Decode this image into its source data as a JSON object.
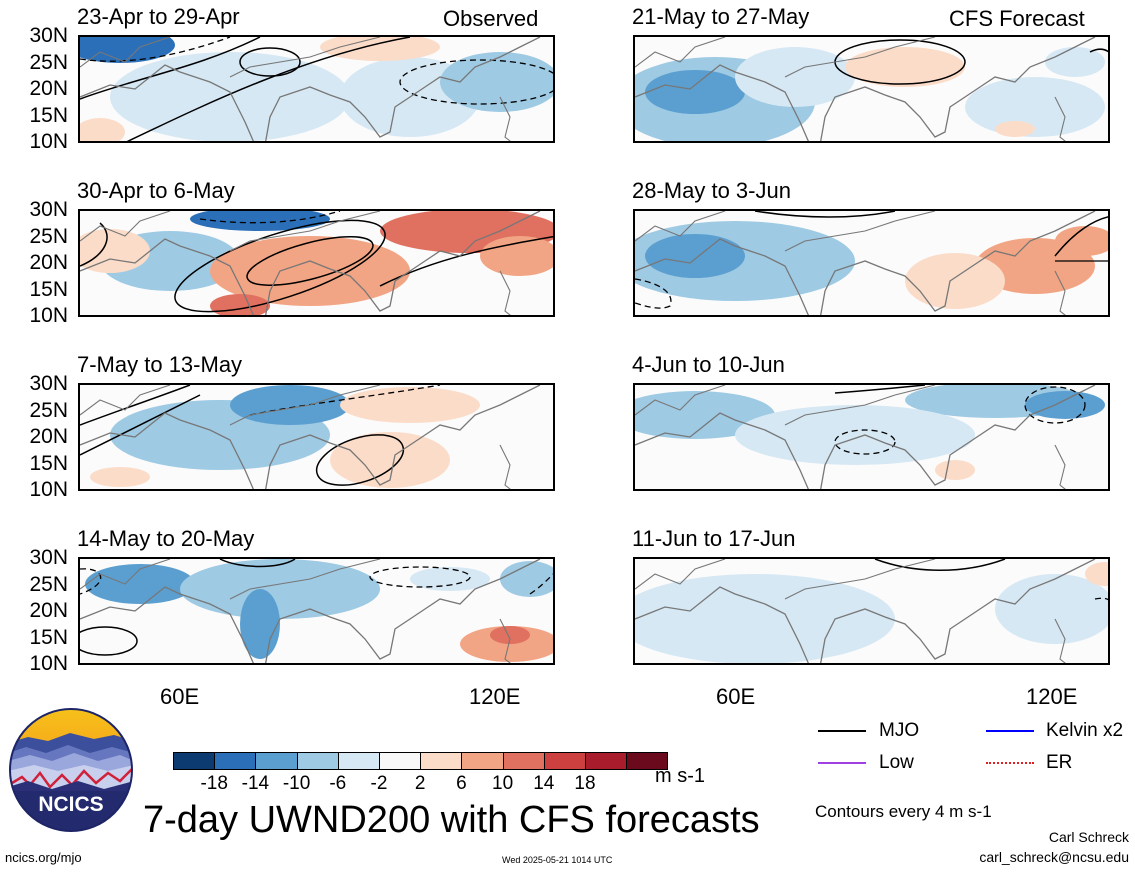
{
  "panels": [
    {
      "title": "23-Apr to 29-Apr",
      "tag": "Observed"
    },
    {
      "title": "21-May to 27-May",
      "tag": "CFS Forecast"
    },
    {
      "title": "30-Apr to 6-May",
      "tag": ""
    },
    {
      "title": "28-May to 3-Jun",
      "tag": ""
    },
    {
      "title": "7-May to 13-May",
      "tag": ""
    },
    {
      "title": "4-Jun to 10-Jun",
      "tag": ""
    },
    {
      "title": "14-May to 20-May",
      "tag": ""
    },
    {
      "title": "11-Jun to 17-Jun",
      "tag": ""
    }
  ],
  "lat_labels": [
    "30N",
    "25N",
    "20N",
    "15N",
    "10N"
  ],
  "lon_labels": [
    "60E",
    "120E"
  ],
  "colorbar": {
    "colors": [
      "#0b3b70",
      "#2a6fb8",
      "#5b9fd0",
      "#9ecae4",
      "#d6e8f4",
      "#f8f8f8",
      "#fbdcc8",
      "#f2a584",
      "#e07060",
      "#cc4040",
      "#a81c2c",
      "#6b0a1c"
    ],
    "labels": [
      "-18",
      "-14",
      "-10",
      "-6",
      "-2",
      "2",
      "6",
      "10",
      "14",
      "18"
    ],
    "unit": "m s-1"
  },
  "legend": {
    "items": [
      {
        "label": "MJO",
        "color": "#000000"
      },
      {
        "label": "Kelvin x2",
        "color": "#0000ff"
      },
      {
        "label": "Low",
        "color": "#a040e0"
      },
      {
        "label": "ER",
        "color": "#e02020"
      }
    ],
    "contour_note": "Contours every 4 m s-1"
  },
  "logo_text": "NCICS",
  "main_title": "7-day UWND200 with CFS forecasts",
  "footer": {
    "url": "ncics.org/mjo",
    "timestamp": "Wed 2025-05-21 1014 UTC",
    "author": "Carl Schreck",
    "email": "carl_schreck@ncsu.edu"
  }
}
